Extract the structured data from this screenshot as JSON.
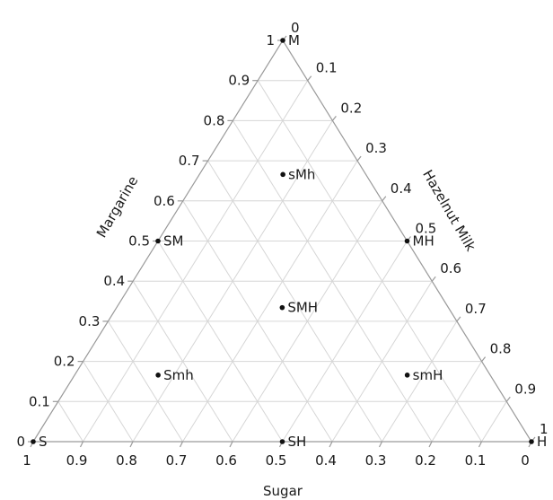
{
  "chart_data": {
    "type": "ternary",
    "axes": {
      "bottom": {
        "label": "Sugar",
        "component": "S"
      },
      "left": {
        "label": "Margarine",
        "component": "M"
      },
      "right": {
        "label": "Hazelnut Milk",
        "component": "H"
      }
    },
    "ticks": [
      "0",
      "0.1",
      "0.2",
      "0.3",
      "0.4",
      "0.5",
      "0.6",
      "0.7",
      "0.8",
      "0.9",
      "1"
    ],
    "grid": true,
    "points": [
      {
        "label": "M",
        "sugar": 0,
        "margarine": 1,
        "hazelnut_milk": 0
      },
      {
        "label": "sMh",
        "sugar": 0.167,
        "margarine": 0.667,
        "hazelnut_milk": 0.167
      },
      {
        "label": "SM",
        "sugar": 0.5,
        "margarine": 0.5,
        "hazelnut_milk": 0
      },
      {
        "label": "MH",
        "sugar": 0,
        "margarine": 0.5,
        "hazelnut_milk": 0.5
      },
      {
        "label": "SMH",
        "sugar": 0.333,
        "margarine": 0.333,
        "hazelnut_milk": 0.333
      },
      {
        "label": "Smh",
        "sugar": 0.667,
        "margarine": 0.167,
        "hazelnut_milk": 0.167
      },
      {
        "label": "smH",
        "sugar": 0.167,
        "margarine": 0.167,
        "hazelnut_milk": 0.667
      },
      {
        "label": "S",
        "sugar": 1,
        "margarine": 0,
        "hazelnut_milk": 0
      },
      {
        "label": "SH",
        "sugar": 0.5,
        "margarine": 0,
        "hazelnut_milk": 0.5
      },
      {
        "label": "H",
        "sugar": 0,
        "margarine": 0,
        "hazelnut_milk": 1
      }
    ]
  }
}
